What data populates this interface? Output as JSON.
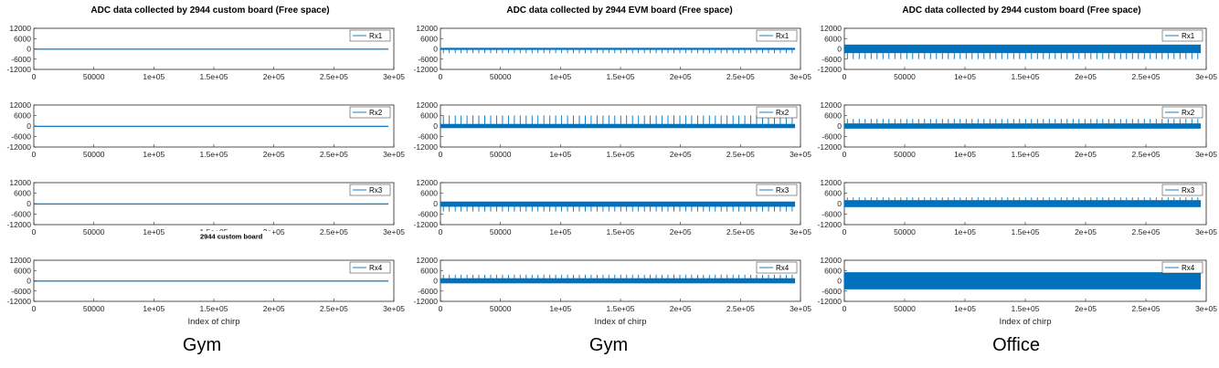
{
  "colors": {
    "signal": "#0072bd",
    "axis": "#262626",
    "legend_line": "#0072bd"
  },
  "panel_titles": [
    "ADC data collected by   2944 custom board (Free space)",
    "ADC data collected by 2944 EVM board (Free space)",
    "ADC data collected by   2944 custom board (Free space)"
  ],
  "captions": [
    "Gym",
    "Gym",
    "Office"
  ],
  "annotation": "2944 custom board",
  "chart_data": [
    {
      "type": "line",
      "panel": "custom-board-gym",
      "xlabel": "Index of chirp",
      "xlim": [
        0,
        300000
      ],
      "xticks": [
        "0",
        "50000",
        "1e+05",
        "1.5e+05",
        "2e+05",
        "2.5e+05",
        "3e+05"
      ],
      "yticks": [
        "12000",
        "6000",
        "0",
        "-6000",
        "-12000"
      ],
      "ylim": [
        -12000,
        12000
      ],
      "grid": false,
      "legend_position": "top-right",
      "series": [
        {
          "name": "Rx1",
          "baseline": 0,
          "upper": 150,
          "lower": -150,
          "spike_up": 0,
          "spike_down": 0
        },
        {
          "name": "Rx2",
          "baseline": 0,
          "upper": 150,
          "lower": -150,
          "spike_up": 0,
          "spike_down": 0
        },
        {
          "name": "Rx3",
          "baseline": 0,
          "upper": 150,
          "lower": -150,
          "spike_up": 0,
          "spike_down": 0
        },
        {
          "name": "Rx4",
          "baseline": 0,
          "upper": 150,
          "lower": -150,
          "spike_up": 0,
          "spike_down": 0
        }
      ]
    },
    {
      "type": "line",
      "panel": "evm-board-gym",
      "xlabel": "Index of chirp",
      "xlim": [
        0,
        300000
      ],
      "xticks": [
        "0",
        "50000",
        "1e+05",
        "1.5e+05",
        "2e+05",
        "2.5e+05",
        "3e+05"
      ],
      "yticks": [
        "12000",
        "6000",
        "0",
        "-6000",
        "-12000"
      ],
      "ylim": [
        -12000,
        12000
      ],
      "grid": false,
      "legend_position": "top-right",
      "series": [
        {
          "name": "Rx1",
          "baseline": 0,
          "upper": 600,
          "lower": -600,
          "spike_up": 0,
          "spike_down": -2500
        },
        {
          "name": "Rx2",
          "baseline": 0,
          "upper": 1200,
          "lower": -1200,
          "spike_up": 6000,
          "spike_down": 0
        },
        {
          "name": "Rx3",
          "baseline": 0,
          "upper": 1200,
          "lower": -1800,
          "spike_up": 0,
          "spike_down": -4500
        },
        {
          "name": "Rx4",
          "baseline": 0,
          "upper": 1500,
          "lower": -1500,
          "spike_up": 3500,
          "spike_down": 0
        }
      ]
    },
    {
      "type": "line",
      "panel": "custom-board-office",
      "xlabel": "Index of chirp",
      "xlim": [
        0,
        300000
      ],
      "xticks": [
        "0",
        "50000",
        "1e+05",
        "1.5e+05",
        "2e+05",
        "2.5e+05",
        "3e+05"
      ],
      "yticks": [
        "12000",
        "6000",
        "0",
        "-6000",
        "-12000"
      ],
      "ylim": [
        -12000,
        12000
      ],
      "grid": false,
      "legend_position": "top-right",
      "series": [
        {
          "name": "Rx1",
          "baseline": 0,
          "upper": 2500,
          "lower": -2500,
          "spike_up": 0,
          "spike_down": -6000
        },
        {
          "name": "Rx2",
          "baseline": 0,
          "upper": 1500,
          "lower": -1500,
          "spike_up": 4000,
          "spike_down": 0
        },
        {
          "name": "Rx3",
          "baseline": 0,
          "upper": 2000,
          "lower": -2000,
          "spike_up": 3500,
          "spike_down": 0
        },
        {
          "name": "Rx4",
          "baseline": 0,
          "upper": 5000,
          "lower": -5000,
          "spike_up": 0,
          "spike_down": 0
        }
      ]
    }
  ]
}
